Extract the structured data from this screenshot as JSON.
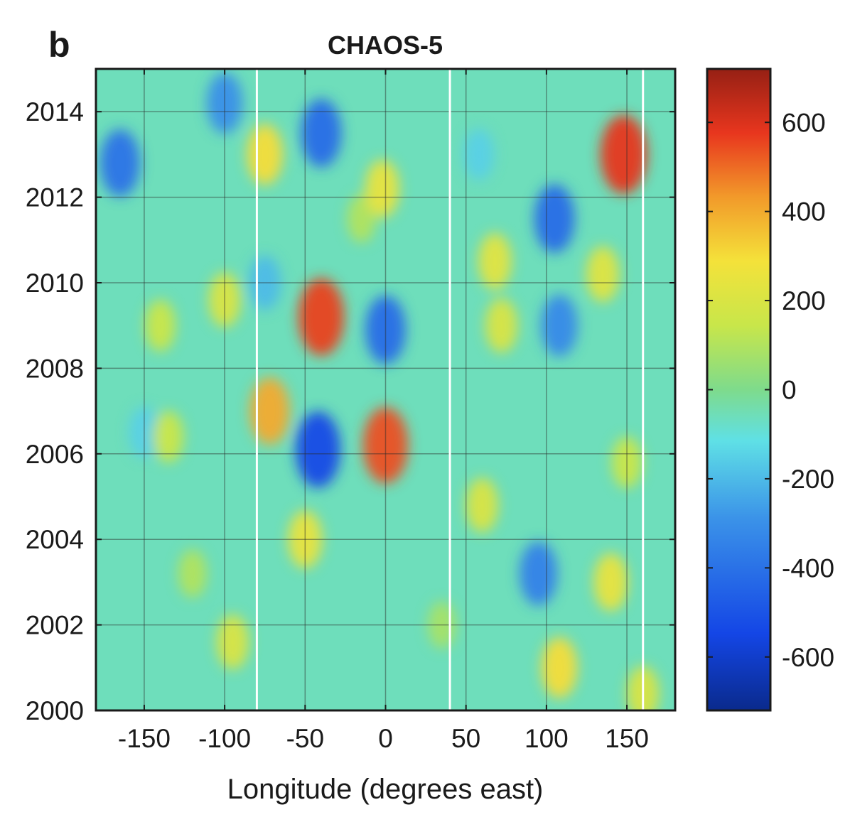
{
  "panel_label": "b",
  "chart_data": {
    "type": "heatmap",
    "title": "CHAOS-5",
    "xlabel": "Longitude (degrees east)",
    "ylabel": "",
    "xlim": [
      -180,
      180
    ],
    "ylim": [
      2000,
      2015
    ],
    "x_ticks": [
      -150,
      -100,
      -50,
      0,
      50,
      100,
      150
    ],
    "y_ticks": [
      2000,
      2002,
      2004,
      2006,
      2008,
      2010,
      2012,
      2014
    ],
    "grid": true,
    "colorbar": {
      "range": [
        -720,
        720
      ],
      "ticks": [
        600,
        400,
        200,
        0,
        -200,
        -400,
        -600
      ],
      "colormap": "jet",
      "placement": "right"
    },
    "vertical_reference_lines_x": [
      -80,
      40,
      160
    ],
    "reference_line_color": "#ffffff",
    "background_level": -60,
    "features": [
      {
        "x": -165,
        "y": 2012.8,
        "value": -400
      },
      {
        "x": -150,
        "y": 2006.5,
        "value": -150
      },
      {
        "x": -100,
        "y": 2014.2,
        "value": -300
      },
      {
        "x": -100,
        "y": 2009.6,
        "value": 200
      },
      {
        "x": -140,
        "y": 2009.0,
        "value": 150
      },
      {
        "x": -135,
        "y": 2006.4,
        "value": 150
      },
      {
        "x": -120,
        "y": 2003.2,
        "value": 100
      },
      {
        "x": -95,
        "y": 2001.6,
        "value": 200
      },
      {
        "x": -75,
        "y": 2013.0,
        "value": 300
      },
      {
        "x": -72,
        "y": 2007.0,
        "value": 400
      },
      {
        "x": -75,
        "y": 2010.0,
        "value": -200
      },
      {
        "x": -50,
        "y": 2004.0,
        "value": 250
      },
      {
        "x": -40,
        "y": 2013.5,
        "value": -420
      },
      {
        "x": -40,
        "y": 2009.2,
        "value": 560
      },
      {
        "x": -42,
        "y": 2006.1,
        "value": -540
      },
      {
        "x": -15,
        "y": 2011.5,
        "value": 100
      },
      {
        "x": -2,
        "y": 2012.2,
        "value": 250
      },
      {
        "x": 0,
        "y": 2008.9,
        "value": -420
      },
      {
        "x": 0,
        "y": 2006.2,
        "value": 540
      },
      {
        "x": 60,
        "y": 2004.8,
        "value": 200
      },
      {
        "x": 68,
        "y": 2010.5,
        "value": 230
      },
      {
        "x": 72,
        "y": 2009.0,
        "value": 200
      },
      {
        "x": 58,
        "y": 2013.0,
        "value": -150
      },
      {
        "x": 95,
        "y": 2003.2,
        "value": -350
      },
      {
        "x": 105,
        "y": 2011.5,
        "value": -420
      },
      {
        "x": 108,
        "y": 2009.0,
        "value": -320
      },
      {
        "x": 108,
        "y": 2001.0,
        "value": 300
      },
      {
        "x": 135,
        "y": 2010.2,
        "value": 220
      },
      {
        "x": 148,
        "y": 2013.0,
        "value": 580
      },
      {
        "x": 140,
        "y": 2003.0,
        "value": 250
      },
      {
        "x": 150,
        "y": 2005.8,
        "value": 150
      },
      {
        "x": 160,
        "y": 2000.4,
        "value": 200
      },
      {
        "x": 35,
        "y": 2002.0,
        "value": 80
      }
    ]
  }
}
